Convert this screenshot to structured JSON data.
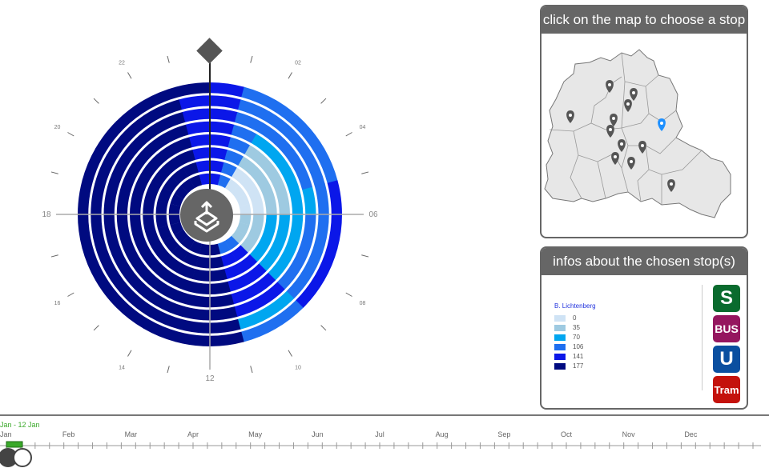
{
  "clock": {
    "center_icon": "upload-tray-icon",
    "handle_icon": "diamond-handle-icon",
    "axis_labels": {
      "top": "",
      "right": "06",
      "bottom": "12",
      "left": "18"
    },
    "hour_labels": [
      {
        "hour": 2,
        "label": "02"
      },
      {
        "hour": 4,
        "label": "04"
      },
      {
        "hour": 8,
        "label": "08"
      },
      {
        "hour": 10,
        "label": "10"
      },
      {
        "hour": 14,
        "label": "14"
      },
      {
        "hour": 16,
        "label": "16"
      },
      {
        "hour": 20,
        "label": "20"
      },
      {
        "hour": 22,
        "label": "22"
      }
    ],
    "ring_count": 8
  },
  "map_panel": {
    "title": "click on the map to choose a stop",
    "marker_icon": "map-pin-icon",
    "selected_color": "#1e90ff",
    "marker_color": "#555555"
  },
  "info_panel": {
    "title": "infos about the chosen stop(s)",
    "stop_name": "B. Lichtenberg",
    "legend": [
      {
        "label": "0",
        "color": "#cfe3f5"
      },
      {
        "label": "35",
        "color": "#9ecae1"
      },
      {
        "label": "70",
        "color": "#00a6f0"
      },
      {
        "label": "106",
        "color": "#1f6ff0"
      },
      {
        "label": "141",
        "color": "#0b17e8"
      },
      {
        "label": "177",
        "color": "#000a80"
      }
    ],
    "transport": [
      {
        "label": "S",
        "color": "#0a6b2e",
        "icon": "s-bahn-icon"
      },
      {
        "label": "BUS",
        "color": "#95165f",
        "icon": "bus-icon"
      },
      {
        "label": "U",
        "color": "#0a4fa0",
        "icon": "u-bahn-icon"
      },
      {
        "label": "Tram",
        "color": "#c4120c",
        "icon": "tram-icon"
      }
    ]
  },
  "timeline": {
    "range_label": "Jan - 12 Jan",
    "range_color": "#3aa92a",
    "months": [
      "Jan",
      "Feb",
      "Mar",
      "Apr",
      "May",
      "Jun",
      "Jul",
      "Aug",
      "Sep",
      "Oct",
      "Nov",
      "Dec"
    ]
  }
}
